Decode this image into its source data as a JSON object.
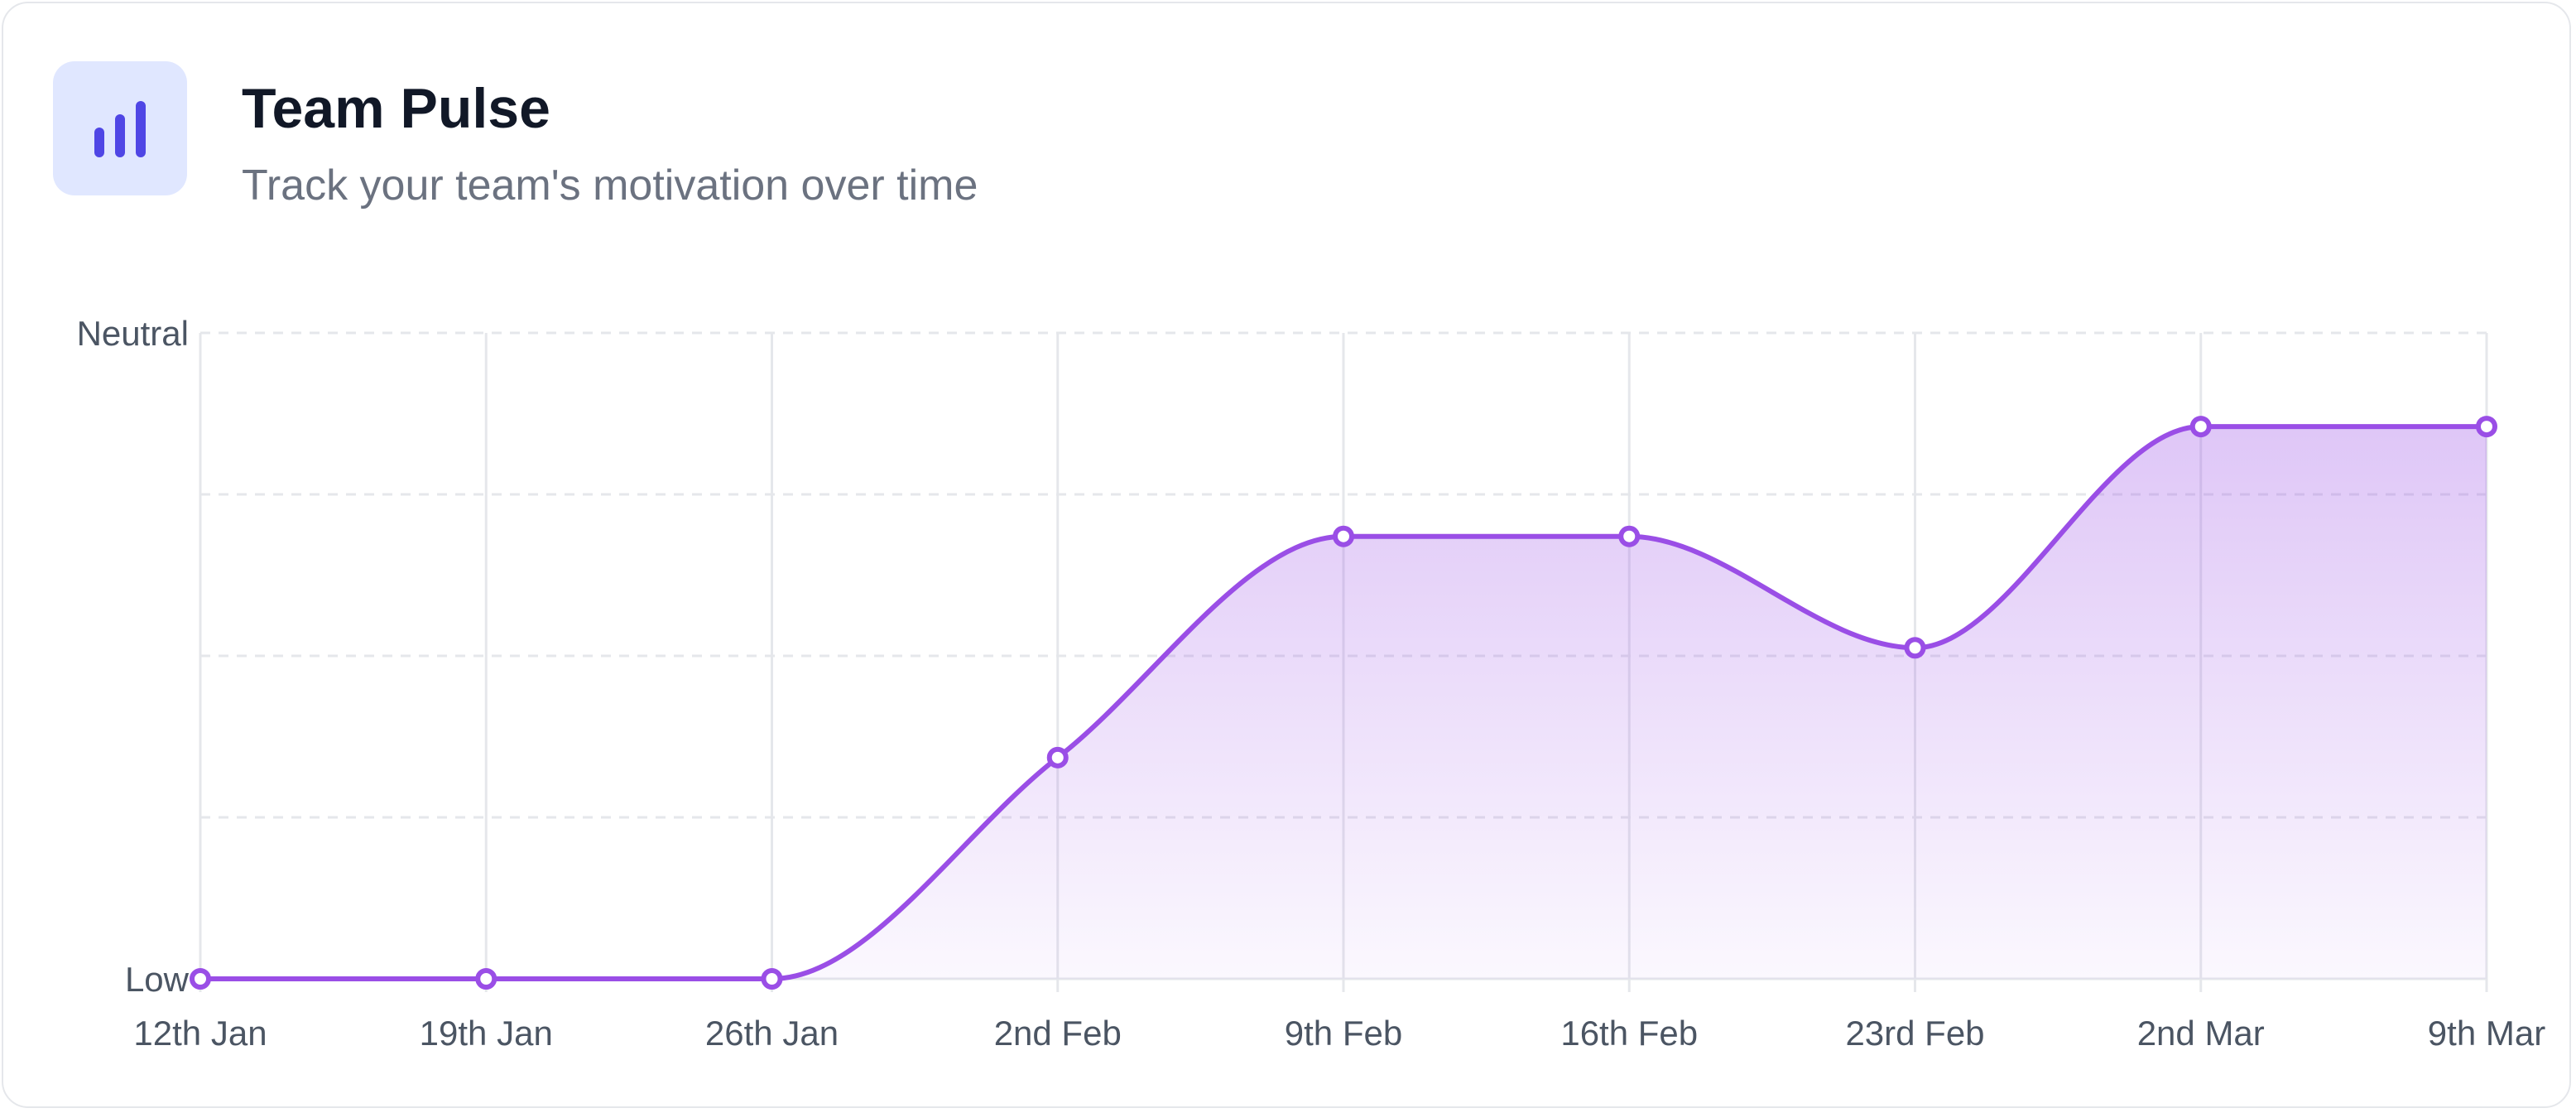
{
  "header": {
    "title": "Team Pulse",
    "subtitle": "Track your team's motivation over time",
    "icon": "bar-chart-icon"
  },
  "colors": {
    "accent": "#9a4ee6",
    "icon_bg": "#e0e7ff",
    "icon_fg": "#4f46e5",
    "grid": "#e5e7eb"
  },
  "chart_data": {
    "type": "area",
    "categories": [
      "12th Jan",
      "19th Jan",
      "26th Jan",
      "2nd Feb",
      "9th Feb",
      "16th Feb",
      "23rd Feb",
      "2nd Mar",
      "9th Mar"
    ],
    "y_tick_labels": [
      "Low",
      "Neutral"
    ],
    "ylim": [
      0,
      4
    ],
    "series": [
      {
        "values": [
          0,
          0,
          0,
          1.37,
          2.74,
          2.74,
          2.05,
          3.42,
          3.42
        ]
      }
    ],
    "grid": true,
    "curve": "smooth"
  }
}
